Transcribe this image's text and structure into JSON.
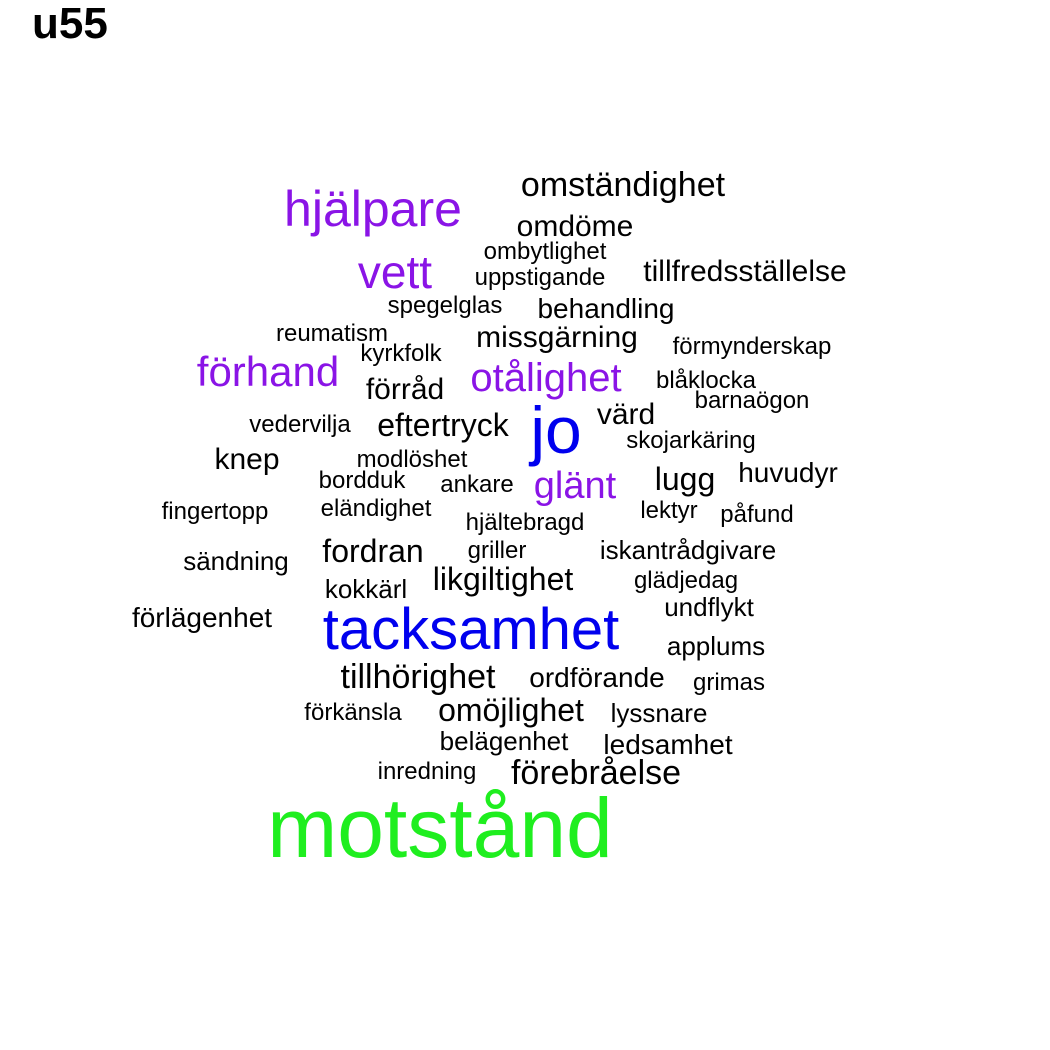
{
  "title": "u55",
  "colors": {
    "black": "#000000",
    "purple": "#8a14e6",
    "blue": "#0000ee",
    "green": "#1fee1f"
  },
  "words": [
    {
      "text": "motstånd",
      "color": "green",
      "weight": 9
    },
    {
      "text": "tacksamhet",
      "color": "blue",
      "weight": 6
    },
    {
      "text": "jo",
      "color": "blue",
      "weight": 7
    },
    {
      "text": "hjälpare",
      "color": "purple",
      "weight": 5
    },
    {
      "text": "vett",
      "color": "purple",
      "weight": 5
    },
    {
      "text": "förhand",
      "color": "purple",
      "weight": 4
    },
    {
      "text": "otålighet",
      "color": "purple",
      "weight": 4
    },
    {
      "text": "glänt",
      "color": "purple",
      "weight": 4
    },
    {
      "text": "omständighet",
      "color": "black",
      "weight": 3
    },
    {
      "text": "omdöme",
      "color": "black",
      "weight": 3
    },
    {
      "text": "ombytlighet",
      "color": "black",
      "weight": 1
    },
    {
      "text": "uppstigande",
      "color": "black",
      "weight": 1
    },
    {
      "text": "tillfredsställelse",
      "color": "black",
      "weight": 2
    },
    {
      "text": "spegelglas",
      "color": "black",
      "weight": 1
    },
    {
      "text": "behandling",
      "color": "black",
      "weight": 2
    },
    {
      "text": "reumatism",
      "color": "black",
      "weight": 1
    },
    {
      "text": "missgärning",
      "color": "black",
      "weight": 2
    },
    {
      "text": "kyrkfolk",
      "color": "black",
      "weight": 1
    },
    {
      "text": "förmynderskap",
      "color": "black",
      "weight": 1
    },
    {
      "text": "förråd",
      "color": "black",
      "weight": 2
    },
    {
      "text": "blåklocka",
      "color": "black",
      "weight": 1
    },
    {
      "text": "barnaögon",
      "color": "black",
      "weight": 1
    },
    {
      "text": "vedervilja",
      "color": "black",
      "weight": 1
    },
    {
      "text": "eftertryck",
      "color": "black",
      "weight": 3
    },
    {
      "text": "värd",
      "color": "black",
      "weight": 3
    },
    {
      "text": "skojarkäring",
      "color": "black",
      "weight": 1
    },
    {
      "text": "knep",
      "color": "black",
      "weight": 2
    },
    {
      "text": "modlöshet",
      "color": "black",
      "weight": 1
    },
    {
      "text": "bordduk",
      "color": "black",
      "weight": 1
    },
    {
      "text": "ankare",
      "color": "black",
      "weight": 1
    },
    {
      "text": "lugg",
      "color": "black",
      "weight": 3
    },
    {
      "text": "huvudyr",
      "color": "black",
      "weight": 2
    },
    {
      "text": "fingertopp",
      "color": "black",
      "weight": 1
    },
    {
      "text": "eländighet",
      "color": "black",
      "weight": 1
    },
    {
      "text": "hjältebragd",
      "color": "black",
      "weight": 1
    },
    {
      "text": "lektyr",
      "color": "black",
      "weight": 1
    },
    {
      "text": "påfund",
      "color": "black",
      "weight": 1
    },
    {
      "text": "sändning",
      "color": "black",
      "weight": 1
    },
    {
      "text": "fordran",
      "color": "black",
      "weight": 3
    },
    {
      "text": "griller",
      "color": "black",
      "weight": 1
    },
    {
      "text": "iskantrådgivare",
      "color": "black",
      "weight": 2
    },
    {
      "text": "kokkärl",
      "color": "black",
      "weight": 2
    },
    {
      "text": "likgiltighet",
      "color": "black",
      "weight": 3
    },
    {
      "text": "glädjedag",
      "color": "black",
      "weight": 1
    },
    {
      "text": "undflykt",
      "color": "black",
      "weight": 2
    },
    {
      "text": "förlägenhet",
      "color": "black",
      "weight": 2
    },
    {
      "text": "applums",
      "color": "black",
      "weight": 2
    },
    {
      "text": "tillhörighet",
      "color": "black",
      "weight": 3
    },
    {
      "text": "ordförande",
      "color": "black",
      "weight": 2
    },
    {
      "text": "grimas",
      "color": "black",
      "weight": 1
    },
    {
      "text": "förkänsla",
      "color": "black",
      "weight": 1
    },
    {
      "text": "omöjlighet",
      "color": "black",
      "weight": 3
    },
    {
      "text": "lyssnare",
      "color": "black",
      "weight": 2
    },
    {
      "text": "belägenhet",
      "color": "black",
      "weight": 2
    },
    {
      "text": "ledsamhet",
      "color": "black",
      "weight": 2
    },
    {
      "text": "inredning",
      "color": "black",
      "weight": 1
    },
    {
      "text": "förebråelse",
      "color": "black",
      "weight": 3
    }
  ]
}
